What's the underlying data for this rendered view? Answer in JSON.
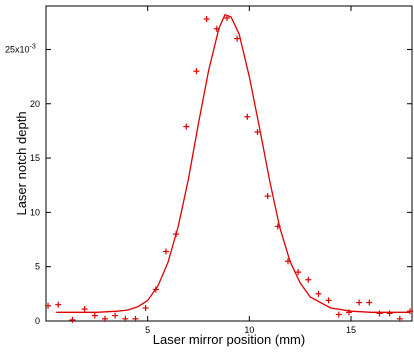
{
  "chart_data": {
    "type": "scatter",
    "xlabel": "Laser mirror position (mm)",
    "ylabel": "Laser notch depth",
    "y_scale_label": {
      "base": "25x10",
      "exponent": "-3"
    },
    "xlim": [
      0,
      18
    ],
    "ylim": [
      0,
      29
    ],
    "x_ticks": [
      5,
      10,
      15
    ],
    "x_tick_labels": [
      "5",
      "10",
      "15"
    ],
    "y_ticks": [
      0,
      5,
      10,
      15,
      20
    ],
    "y_tick_labels": [
      "0",
      "5",
      "10",
      "15",
      "20"
    ],
    "grid": false,
    "legend": "none",
    "colors": {
      "data": "#e00000",
      "axes": "#000000"
    },
    "series": [
      {
        "marker": "+",
        "x": [
          0.1,
          0.6,
          1.3,
          1.9,
          2.4,
          2.9,
          3.4,
          3.9,
          4.4,
          4.9,
          5.4,
          5.9,
          6.4,
          6.9,
          7.4,
          7.9,
          8.4,
          8.9,
          9.4,
          9.9,
          10.4,
          10.9,
          11.4,
          11.9,
          12.4,
          12.9,
          13.4,
          13.9,
          14.4,
          14.9,
          15.4,
          15.9,
          16.4,
          16.9,
          17.4,
          17.9
        ],
        "y": [
          1.4,
          1.5,
          0.1,
          1.1,
          0.5,
          0.2,
          0.5,
          0.2,
          0.2,
          1.2,
          2.9,
          6.4,
          8.0,
          17.9,
          23.0,
          27.8,
          26.9,
          27.9,
          26.0,
          18.8,
          17.4,
          11.5,
          8.7,
          5.5,
          4.5,
          3.8,
          2.5,
          1.9,
          0.6,
          0.8,
          1.7,
          1.7,
          0.7,
          0.7,
          0.2,
          0.9
        ]
      },
      {
        "line": "solid",
        "x": [
          0.5,
          1.5,
          2.5,
          3.5,
          4.0,
          4.5,
          5.0,
          5.5,
          6.0,
          6.5,
          7.0,
          7.5,
          8.0,
          8.5,
          8.8,
          9.1,
          9.5,
          10.0,
          10.5,
          11.0,
          11.5,
          12.0,
          12.5,
          13.0,
          14.0,
          15.0,
          16.0,
          17.0,
          17.9
        ],
        "y": [
          0.8,
          0.8,
          0.8,
          0.9,
          1.0,
          1.3,
          1.9,
          3.2,
          5.4,
          8.7,
          13.0,
          18.2,
          23.1,
          26.9,
          28.2,
          28.0,
          26.4,
          22.5,
          17.8,
          12.9,
          8.6,
          5.5,
          3.5,
          2.2,
          1.2,
          0.9,
          0.8,
          0.8,
          0.8
        ]
      }
    ]
  }
}
